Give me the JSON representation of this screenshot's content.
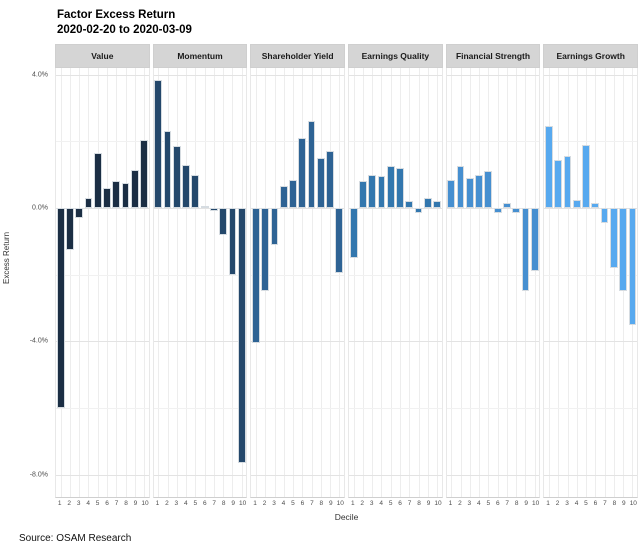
{
  "title": "Factor Excess Return",
  "subtitle": "2020-02-20 to 2020-03-09",
  "source": "Source: OSAM Research",
  "chart_data": {
    "type": "bar",
    "title": "Factor Excess Return",
    "subtitle": "2020-02-20 to 2020-03-09",
    "xlabel": "Decile",
    "ylabel": "Excess Return",
    "categories": [
      "1",
      "2",
      "3",
      "4",
      "5",
      "6",
      "7",
      "8",
      "9",
      "10"
    ],
    "ylim": [
      -8.7,
      4.2
    ],
    "y_ticks": [
      {
        "value": 4,
        "label": "4.0%"
      },
      {
        "value": 0,
        "label": "0.0%"
      },
      {
        "value": -4,
        "label": "-4.0%"
      },
      {
        "value": -8,
        "label": "-8.0%"
      }
    ],
    "grid": {
      "major": [
        4,
        0,
        -4,
        -8
      ],
      "minor": [
        2,
        -2,
        -6
      ],
      "vertical_per_category": true
    },
    "legend": "none",
    "facets": [
      {
        "name": "Value",
        "color": "#1b2e44",
        "values": [
          -6.0,
          -1.25,
          -0.3,
          0.3,
          1.65,
          0.6,
          0.8,
          0.75,
          1.15,
          2.05
        ]
      },
      {
        "name": "Momentum",
        "color": "#24486b",
        "values": [
          3.85,
          2.3,
          1.85,
          1.3,
          1.0,
          0.05,
          -0.1,
          -0.8,
          -2.0,
          -7.65
        ]
      },
      {
        "name": "Shareholder Yield",
        "color": "#2e6394",
        "values": [
          -4.05,
          -2.5,
          -1.1,
          0.65,
          0.85,
          2.1,
          2.6,
          1.5,
          1.7,
          -1.95
        ]
      },
      {
        "name": "Earnings Quality",
        "color": "#3377ae",
        "values": [
          -1.5,
          0.8,
          1.0,
          0.95,
          1.25,
          1.2,
          0.2,
          -0.15,
          0.3,
          0.2
        ]
      },
      {
        "name": "Financial Strength",
        "color": "#468fd0",
        "values": [
          0.85,
          1.25,
          0.9,
          1.0,
          1.1,
          -0.15,
          0.15,
          -0.15,
          -2.5,
          -1.9
        ]
      },
      {
        "name": "Earnings Growth",
        "color": "#57a9ef",
        "values": [
          2.45,
          1.45,
          1.55,
          0.25,
          1.9,
          0.15,
          -0.45,
          -1.8,
          -2.5,
          -3.5
        ]
      }
    ]
  }
}
